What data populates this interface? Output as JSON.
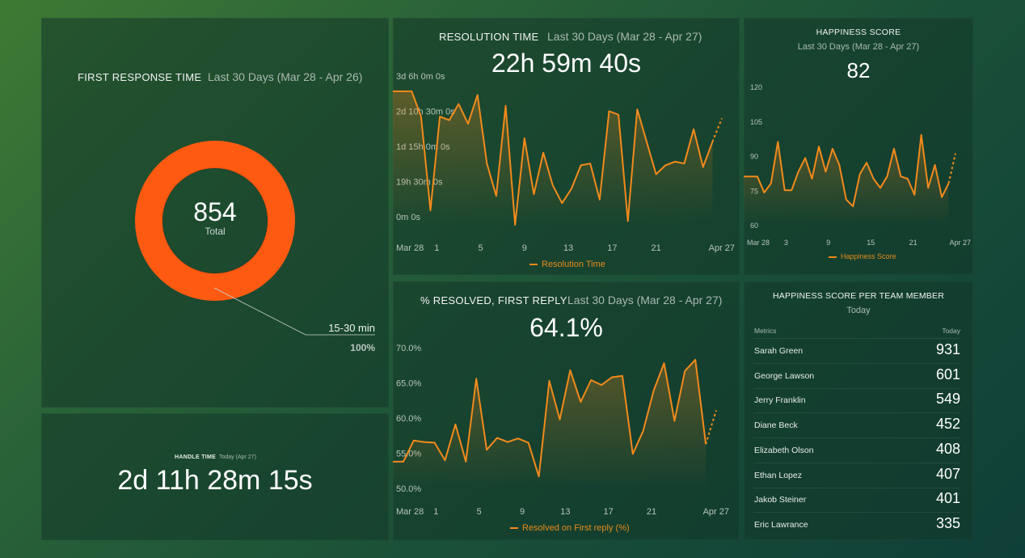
{
  "colors": {
    "accent": "#f28a1c",
    "donut": "#ff5a12"
  },
  "first_response": {
    "title": "FIRST RESPONSE TIME",
    "subtitle": "Last 30 Days (Mar 28 - Apr 26)",
    "total_value": "854",
    "total_label": "Total",
    "callout_label": "15-30 min",
    "callout_percent": "100%"
  },
  "handle_time": {
    "title": "HANDLE TIME",
    "subtitle": "Today (Apr 27)",
    "value": "2d 11h 28m 15s"
  },
  "resolution_time": {
    "title": "RESOLUTION TIME",
    "subtitle": "Last 30 Days (Mar 28 - Apr 27)",
    "value": "22h 59m 40s",
    "legend": "Resolution Time"
  },
  "resolved_first_reply": {
    "title": "% RESOLVED, FIRST REPLY",
    "subtitle": "Last 30 Days (Mar 28 - Apr 27)",
    "value": "64.1%",
    "legend": "Resolved on First reply (%)"
  },
  "happiness": {
    "title": "HAPPINESS SCORE",
    "subtitle": "Last 30 Days (Mar 28 - Apr 27)",
    "value": "82",
    "legend": "Happiness Score"
  },
  "team": {
    "title": "HAPPINESS SCORE PER TEAM MEMBER",
    "subtitle": "Today",
    "col_metric": "Metrics",
    "col_today": "Today",
    "rows": [
      {
        "name": "Sarah Green",
        "value": "931"
      },
      {
        "name": "George Lawson",
        "value": "601"
      },
      {
        "name": "Jerry Franklin",
        "value": "549"
      },
      {
        "name": "Diane Beck",
        "value": "452"
      },
      {
        "name": "Elizabeth Olson",
        "value": "408"
      },
      {
        "name": "Ethan Lopez",
        "value": "407"
      },
      {
        "name": "Jakob Steiner",
        "value": "401"
      },
      {
        "name": "Eric Lawrance",
        "value": "335"
      }
    ]
  },
  "chart_data": [
    {
      "id": "first_response_donut",
      "type": "pie",
      "categories": [
        "15-30 min"
      ],
      "values": [
        100
      ],
      "total": 854
    },
    {
      "id": "resolution",
      "type": "area",
      "ylabel": "",
      "yticks": [
        "0m 0s",
        "19h 30m 0s",
        "1d 15h 0m 0s",
        "2d 10h 30m 0s",
        "3d 6h 0m 0s"
      ],
      "ylim": [
        0,
        78
      ],
      "xticks": [
        {
          "label": "Mar 28",
          "day": 0
        },
        {
          "label": "1",
          "day": 4
        },
        {
          "label": "5",
          "day": 8
        },
        {
          "label": "9",
          "day": 12
        },
        {
          "label": "13",
          "day": 16
        },
        {
          "label": "17",
          "day": 20
        },
        {
          "label": "21",
          "day": 24
        },
        {
          "label": "Apr 27",
          "day": 30
        }
      ],
      "series": [
        {
          "name": "Resolution Time",
          "values": [
            74,
            74,
            74,
            60,
            8,
            60,
            58,
            67,
            56,
            72,
            34,
            16,
            66,
            0,
            48,
            17,
            40,
            22,
            12,
            20,
            33,
            34,
            14,
            63,
            61,
            2,
            64,
            46,
            28,
            33,
            35,
            34,
            53,
            32,
            46,
            59
          ]
        }
      ]
    },
    {
      "id": "resolved_first_reply",
      "type": "area",
      "ylabel": "",
      "yticks": [
        "50.0%",
        "55.0%",
        "60.0%",
        "65.0%",
        "70.0%"
      ],
      "ylim": [
        50,
        70
      ],
      "xticks": [
        {
          "label": "Mar 28",
          "day": 0
        },
        {
          "label": "1",
          "day": 4
        },
        {
          "label": "5",
          "day": 8
        },
        {
          "label": "9",
          "day": 12
        },
        {
          "label": "13",
          "day": 16
        },
        {
          "label": "17",
          "day": 20
        },
        {
          "label": "21",
          "day": 24
        },
        {
          "label": "Apr 27",
          "day": 30
        }
      ],
      "series": [
        {
          "name": "Resolved on First reply (%)",
          "values": [
            53.8,
            53.8,
            56.8,
            56.6,
            56.5,
            54.0,
            59.1,
            53.8,
            65.6,
            55.5,
            57.2,
            56.6,
            57.1,
            56.5,
            51.7,
            65.3,
            59.8,
            66.8,
            62.3,
            65.4,
            64.7,
            65.8,
            66.0,
            54.9,
            58.2,
            63.9,
            67.8,
            59.6,
            66.7,
            68.3,
            56.3,
            61.1
          ]
        }
      ]
    },
    {
      "id": "happiness",
      "type": "area",
      "ylabel": "",
      "yticks": [
        "60",
        "75",
        "90",
        "105",
        "120"
      ],
      "ylim": [
        60,
        120
      ],
      "xticks": [
        {
          "label": "Mar 28",
          "day": 0
        },
        {
          "label": "3",
          "day": 6
        },
        {
          "label": "9",
          "day": 12
        },
        {
          "label": "15",
          "day": 18
        },
        {
          "label": "21",
          "day": 24
        },
        {
          "label": "Apr 27",
          "day": 30
        }
      ],
      "series": [
        {
          "name": "Happiness Score",
          "values": [
            81,
            81,
            81,
            74,
            78,
            96,
            75,
            75,
            83,
            89,
            80,
            94,
            83,
            93,
            86,
            71,
            68,
            82,
            87,
            80,
            76,
            81,
            93,
            81,
            80,
            73,
            99,
            76,
            86,
            72,
            78,
            91
          ]
        }
      ]
    }
  ]
}
